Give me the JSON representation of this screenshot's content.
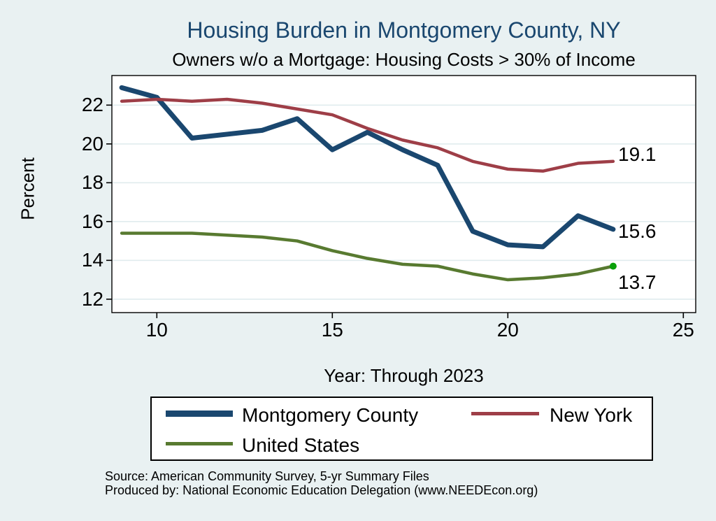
{
  "title": {
    "text": "Housing Burden in Montgomery County, NY"
  },
  "subtitle": {
    "text": "Owners w/o a Mortgage: Housing Costs > 30% of Income"
  },
  "colors": {
    "background": "#e9f1f2",
    "title": "#1a476f",
    "plot_background": "#ffffff",
    "gridline": "#e0ecee",
    "axis": "#000000",
    "montgomery_county": "#1a476f",
    "new_york": "#9e3e47",
    "united_states": "#587a30",
    "us_end_marker": "#0aa00a"
  },
  "chart_data": {
    "type": "line",
    "title": "Housing Burden in Montgomery County, NY",
    "subtitle": "Owners w/o a Mortgage: Housing Costs > 30% of Income",
    "xlabel": "Year: Through 2023",
    "ylabel": "Percent",
    "x": [
      9,
      10,
      11,
      12,
      13,
      14,
      15,
      16,
      17,
      18,
      19,
      20,
      21,
      22,
      23
    ],
    "x_ticks": [
      10,
      15,
      20,
      25
    ],
    "y_ticks": [
      12,
      14,
      16,
      18,
      20,
      22
    ],
    "xlim": [
      8.7,
      25.35
    ],
    "ylim": [
      11.3,
      23.5
    ],
    "grid": true,
    "legend_position": "bottom",
    "series": [
      {
        "name": "Montgomery County",
        "color": "#1a476f",
        "line_width": 7,
        "values": [
          22.9,
          22.4,
          20.3,
          20.5,
          20.7,
          21.3,
          19.7,
          20.6,
          19.7,
          18.9,
          15.5,
          14.8,
          14.7,
          16.3,
          15.6
        ]
      },
      {
        "name": "New York",
        "color": "#9e3e47",
        "line_width": 4.5,
        "values": [
          22.2,
          22.3,
          22.2,
          22.3,
          22.1,
          21.8,
          21.5,
          20.8,
          20.2,
          19.8,
          19.1,
          18.7,
          18.6,
          19.0,
          19.1
        ]
      },
      {
        "name": "United States",
        "color": "#587a30",
        "line_width": 4.5,
        "end_marker_color": "#0aa00a",
        "values": [
          15.4,
          15.4,
          15.4,
          15.3,
          15.2,
          15.0,
          14.5,
          14.1,
          13.8,
          13.7,
          13.3,
          13.0,
          13.1,
          13.3,
          13.7
        ]
      }
    ],
    "end_labels": [
      {
        "text": "19.1",
        "anchor_y": 19.45
      },
      {
        "text": "15.6",
        "anchor_y": 15.5
      },
      {
        "text": "13.7",
        "anchor_y": 12.85
      }
    ]
  },
  "footer": {
    "lines": [
      "Source: American Community Survey, 5-yr Summary Files",
      "Produced by: National Economic Education Delegation (www.NEEDEcon.org)"
    ]
  }
}
